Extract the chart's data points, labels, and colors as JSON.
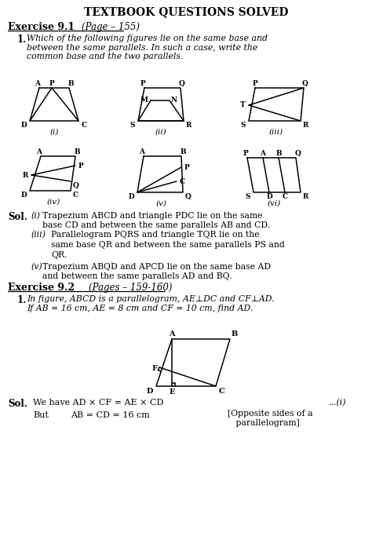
{
  "title": "TEXTBOOK QUESTIONS SOLVED",
  "bg_color": "#ffffff",
  "ex91_bold": "Exercise 9.1",
  "ex91_italic": "(Page – 155)",
  "ex92_bold": "Exercise 9.2",
  "ex92_italic": "(Pages – 159-160)",
  "q1_text": "Which of the following figures lie on the same base and\nbetween the same parallels. In such a case, write the\ncommon base and the two parallels.",
  "q2_text": "In figure, ABCD is a parallelogram, AE⊥DC and CF⊥AD.\nIf AB = 16 cm, AE = 8 cm and CF = 10 cm, find AD.",
  "sol_i": "Trapezium ABCD and triangle PDC lie on the same\nbase CD and between the same parallels AB and CD.",
  "sol_iii_1": "Parallelogram PQRS and triangle TQR lie on the",
  "sol_iii_2": "same base QR and between the same parallels PS and",
  "sol_iii_3": "QR.",
  "sol_v": "Trapezium ABQD and APCD lie on the same base AD\nand between the same parallels AD and BQ.",
  "sol2_eq": "We have AD × CF = AE × CD",
  "sol2_ref": "...(i)",
  "sol2_but": "But",
  "sol2_eq2": "AB = CD = 16 cm",
  "sol2_bracket": "[Opposite sides of a\n   parallelogram]"
}
